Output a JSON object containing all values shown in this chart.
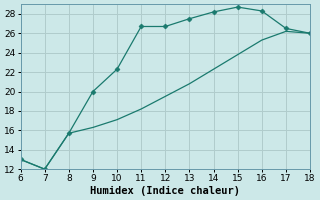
{
  "upper_x": [
    6,
    7,
    8,
    9,
    10,
    11,
    12,
    13,
    14,
    15,
    16,
    17,
    18
  ],
  "upper_y": [
    13,
    12,
    15.7,
    20,
    22.3,
    26.7,
    26.7,
    27.5,
    28.2,
    28.7,
    28.3,
    26.5,
    26
  ],
  "lower_x": [
    6,
    7,
    8,
    9,
    10,
    11,
    12,
    13,
    14,
    15,
    16,
    17,
    18
  ],
  "lower_y": [
    13,
    12,
    15.7,
    16.3,
    17.1,
    18.2,
    19.5,
    20.8,
    22.3,
    23.8,
    25.3,
    26.2,
    26
  ],
  "line_color": "#1a7a6e",
  "marker": "D",
  "marker_size": 2.5,
  "background_color": "#cce8e8",
  "grid_color": "#b0cccc",
  "xlabel": "Humidex (Indice chaleur)",
  "xlim": [
    6,
    18
  ],
  "ylim": [
    12,
    29
  ],
  "xticks": [
    6,
    7,
    8,
    9,
    10,
    11,
    12,
    13,
    14,
    15,
    16,
    17,
    18
  ],
  "yticks": [
    12,
    14,
    16,
    18,
    20,
    22,
    24,
    26,
    28
  ],
  "tick_fontsize": 6.5,
  "xlabel_fontsize": 7.5
}
